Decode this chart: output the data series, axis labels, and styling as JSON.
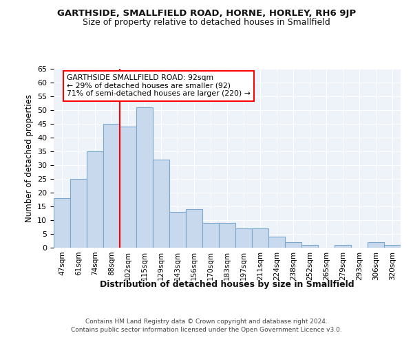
{
  "title": "GARTHSIDE, SMALLFIELD ROAD, HORNE, HORLEY, RH6 9JP",
  "subtitle": "Size of property relative to detached houses in Smallfield",
  "xlabel": "Distribution of detached houses by size in Smallfield",
  "ylabel": "Number of detached properties",
  "categories": [
    "47sqm",
    "61sqm",
    "74sqm",
    "88sqm",
    "102sqm",
    "115sqm",
    "129sqm",
    "143sqm",
    "156sqm",
    "170sqm",
    "183sqm",
    "197sqm",
    "211sqm",
    "224sqm",
    "238sqm",
    "252sqm",
    "265sqm",
    "279sqm",
    "293sqm",
    "306sqm",
    "320sqm"
  ],
  "values": [
    18,
    25,
    35,
    45,
    44,
    51,
    32,
    13,
    14,
    9,
    9,
    7,
    7,
    4,
    2,
    1,
    0,
    1,
    0,
    2,
    1
  ],
  "bar_color": "#c9d9ed",
  "bar_edge_color": "#7aa8cc",
  "annotation_box_text": "GARTHSIDE SMALLFIELD ROAD: 92sqm\n← 29% of detached houses are smaller (92)\n71% of semi-detached houses are larger (220) →",
  "annotation_box_color": "white",
  "annotation_box_edge_color": "red",
  "vline_color": "red",
  "vline_x_pos": 3.5,
  "ylim": [
    0,
    65
  ],
  "yticks": [
    0,
    5,
    10,
    15,
    20,
    25,
    30,
    35,
    40,
    45,
    50,
    55,
    60,
    65
  ],
  "footer_line1": "Contains HM Land Registry data © Crown copyright and database right 2024.",
  "footer_line2": "Contains public sector information licensed under the Open Government Licence v3.0.",
  "bg_color": "#eef2f9",
  "grid_color": "white"
}
